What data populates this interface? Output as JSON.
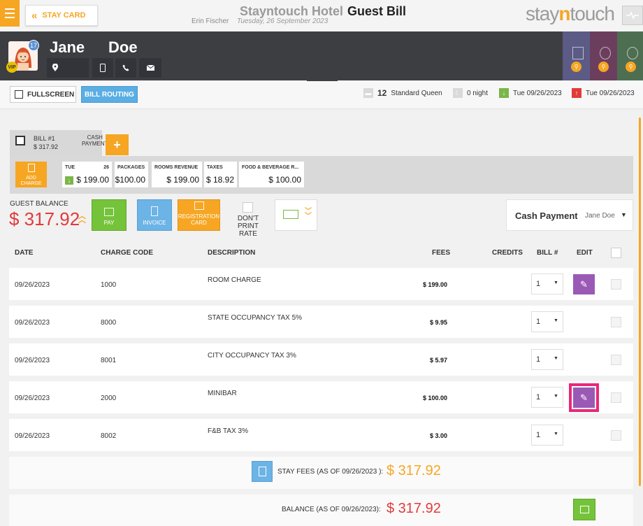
{
  "topbar": {
    "stay_card_label": "STAY CARD",
    "hotel_name": "Stayntouch Hotel",
    "page_title": "Guest Bill",
    "user_name": "Erin Fischer",
    "business_date": "Tuesday, 26 September 2023",
    "logo_pre": "stay",
    "logo_mid": "n",
    "logo_post": "touch"
  },
  "guest": {
    "first_name": "Jane",
    "last_name": "Doe",
    "badge_count": "17",
    "vip_label": "VIP"
  },
  "toolbar": {
    "fullscreen_label": "FULLSCREEN",
    "bill_routing_label": "BILL ROUTING",
    "room_number": "12",
    "room_type": "Standard Queen",
    "nights": "0 night",
    "arrival": "Tue 09/26/2023",
    "departure": "Tue 09/26/2023"
  },
  "bill_tab": {
    "name": "BILL #1",
    "amount": "$ 317.92",
    "payment_line1": "CASH",
    "payment_line2": "PAYMENT",
    "add_label": "+"
  },
  "summary": {
    "add_charge_line1": "ADD",
    "add_charge_line2": "CHARGE",
    "cards": [
      {
        "label": "TUE",
        "num": "26",
        "value": "$ 199.00"
      },
      {
        "label": "PACKAGES",
        "num": "",
        "value": "$100.00"
      },
      {
        "label": "ROOMS REVENUE",
        "num": "",
        "value": "$ 199.00"
      },
      {
        "label": "TAXES",
        "num": "",
        "value": "$ 18.92"
      },
      {
        "label": "FOOD & BEVERAGE R...",
        "num": "",
        "value": "$ 100.00"
      }
    ]
  },
  "balance_bar": {
    "label": "GUEST BALANCE",
    "value": "$ 317.92",
    "pay_label": "PAY",
    "invoice_label": "INVOICE",
    "reg_card_line1": "REGISTRATION",
    "reg_card_line2": "CARD",
    "dont_print_line1": "DON'T PRINT",
    "dont_print_line2": "RATE",
    "payment_type": "Cash Payment",
    "payment_name": "Jane Doe"
  },
  "table": {
    "headers": {
      "date": "DATE",
      "charge_code": "CHARGE CODE",
      "description": "DESCRIPTION",
      "fees": "FEES",
      "credits": "CREDITS",
      "bill": "BILL #",
      "edit": "EDIT"
    },
    "rows": [
      {
        "date": "09/26/2023",
        "code": "1000",
        "desc": "ROOM CHARGE",
        "fees": "$ 199.00",
        "bill": "1"
      },
      {
        "date": "09/26/2023",
        "code": "8000",
        "desc": "STATE OCCUPANCY TAX 5%",
        "fees": "$ 9.95",
        "bill": "1"
      },
      {
        "date": "09/26/2023",
        "code": "8001",
        "desc": "CITY OCCUPANCY TAX 3%",
        "fees": "$ 5.97",
        "bill": "1"
      },
      {
        "date": "09/26/2023",
        "code": "2000",
        "desc": "MINIBAR",
        "fees": "$ 100.00",
        "bill": "1"
      },
      {
        "date": "09/26/2023",
        "code": "8002",
        "desc": "F&B TAX 3%",
        "fees": "$ 3.00",
        "bill": "1"
      }
    ]
  },
  "totals": {
    "stay_fees_label": "STAY FEES (AS OF  09/26/2023 ):",
    "stay_fees_value": "$ 317.92",
    "balance_label": "BALANCE (AS OF  09/26/2023):",
    "balance_value": "$ 317.92"
  },
  "colors": {
    "accent": "#f6a623",
    "balance_red": "#e23a3a",
    "pay_green": "#75c33a",
    "invoice_blue": "#6cb3e6",
    "edit_purple": "#9b59b6",
    "highlight_pink": "#e8287a"
  }
}
